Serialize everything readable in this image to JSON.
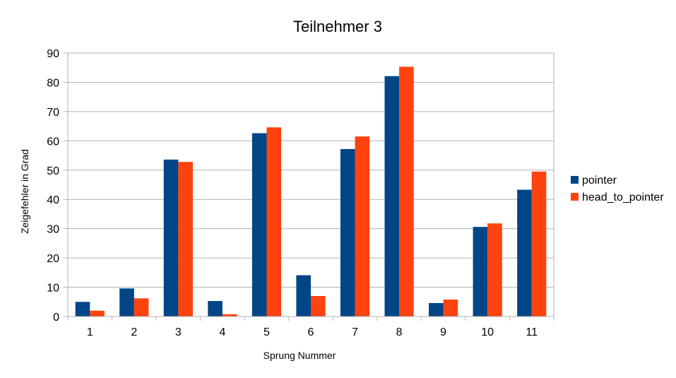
{
  "chart_data": {
    "type": "bar",
    "title": "Teilnehmer 3",
    "xlabel": "Sprung Nummer",
    "ylabel": "Zeigefehler in Grad",
    "categories": [
      "1",
      "2",
      "3",
      "4",
      "5",
      "6",
      "7",
      "8",
      "9",
      "10",
      "11"
    ],
    "ylim": [
      0,
      90
    ],
    "yticks": [
      0,
      10,
      20,
      30,
      40,
      50,
      60,
      70,
      80,
      90
    ],
    "grid": true,
    "legend_position": "right",
    "series": [
      {
        "name": "pointer",
        "color": "#004586",
        "values": [
          5.0,
          9.6,
          53.6,
          5.3,
          62.6,
          14.1,
          57.2,
          82.1,
          4.6,
          30.6,
          43.3
        ]
      },
      {
        "name": "head_to_pointer",
        "color": "#ff420e",
        "values": [
          2.0,
          6.2,
          52.8,
          0.8,
          64.6,
          7.0,
          61.5,
          85.3,
          5.8,
          31.8,
          49.5
        ]
      }
    ]
  }
}
